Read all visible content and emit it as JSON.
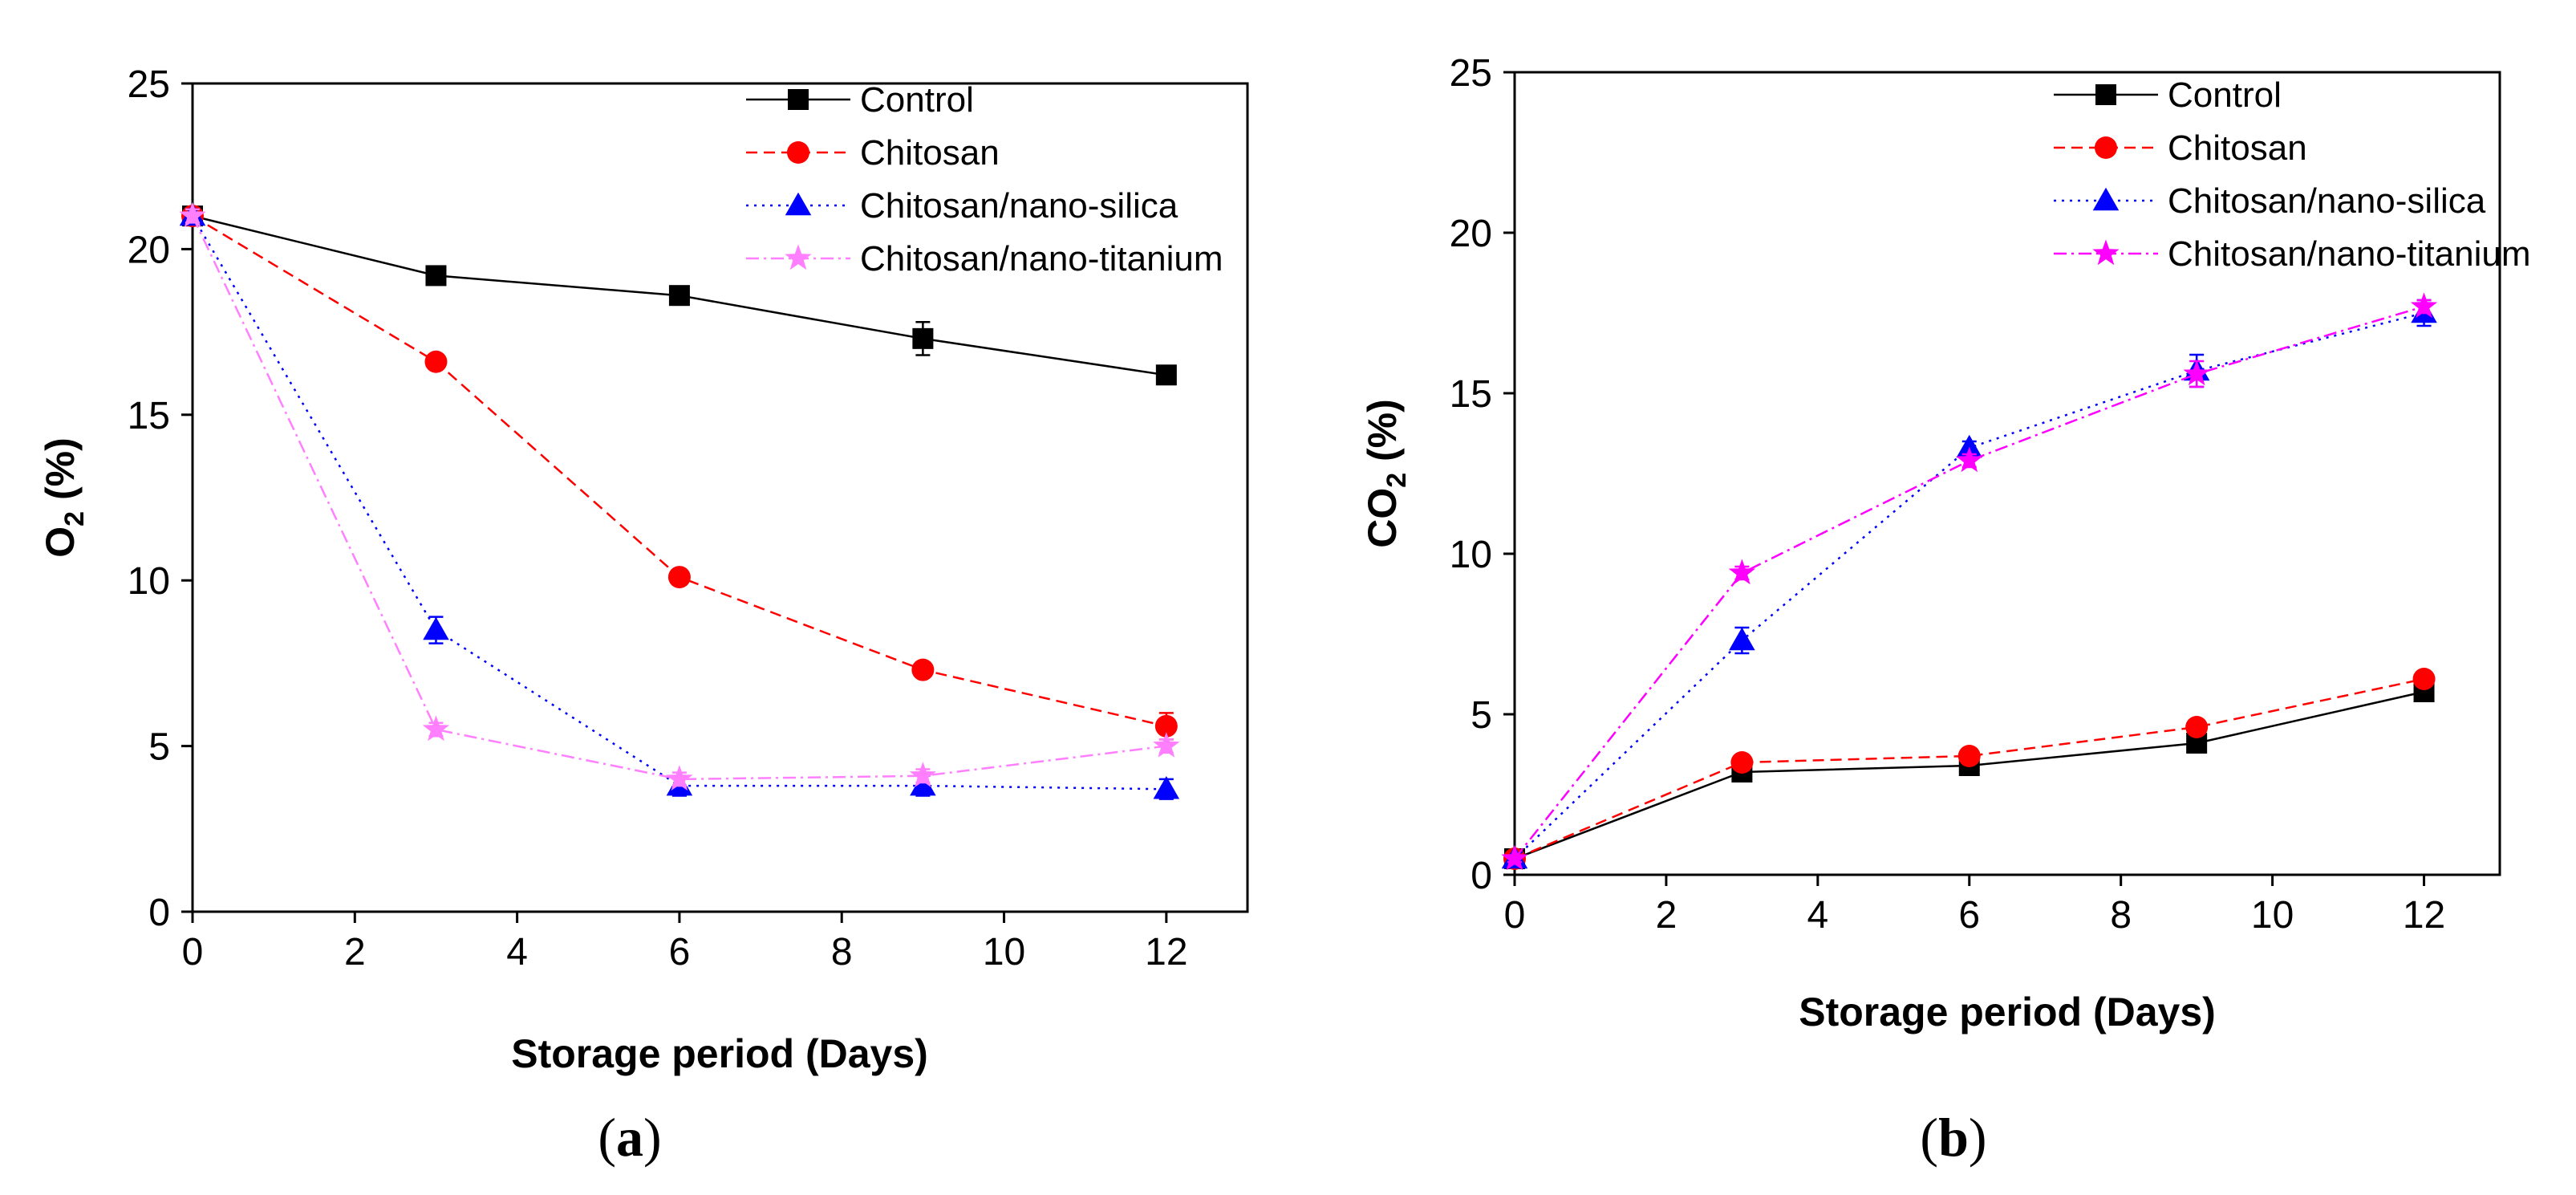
{
  "chart_data": [
    {
      "type": "line",
      "panel_label": "(a)",
      "caption": {
        "open": "(",
        "letter": "a",
        "close": ")"
      },
      "xlabel": "Storage period (Days)",
      "ylabel": {
        "base": "O",
        "sub": "2",
        "rest": " (%)"
      },
      "xlim": [
        0,
        13
      ],
      "ylim": [
        0,
        25
      ],
      "xticks": [
        0,
        2,
        4,
        6,
        8,
        10,
        12
      ],
      "yticks": [
        0,
        5,
        10,
        15,
        20,
        25
      ],
      "legend_position": "top-right",
      "series": [
        {
          "name": "Control",
          "color": "#000000",
          "marker": "square",
          "dash": "solid",
          "x": [
            0,
            3,
            6,
            9,
            12
          ],
          "y": [
            21.0,
            19.2,
            18.6,
            17.3,
            16.2
          ],
          "err": [
            0.2,
            0.2,
            0.2,
            0.5,
            0.2
          ]
        },
        {
          "name": "Chitosan",
          "color": "#ff0000",
          "marker": "circle",
          "dash": "dashed",
          "x": [
            0,
            3,
            6,
            9,
            12
          ],
          "y": [
            21.0,
            16.6,
            10.1,
            7.3,
            5.6
          ],
          "err": [
            0.2,
            0.2,
            0.2,
            0.2,
            0.4
          ]
        },
        {
          "name": "Chitosan/nano-silica",
          "color": "#0000ff",
          "marker": "triangle",
          "dash": "dotted",
          "x": [
            0,
            3,
            6,
            9,
            12
          ],
          "y": [
            21.0,
            8.5,
            3.8,
            3.8,
            3.7
          ],
          "err": [
            0.2,
            0.4,
            0.3,
            0.3,
            0.3
          ]
        },
        {
          "name": "Chitosan/nano-titanium",
          "color": "#ff7fff",
          "marker": "star",
          "dash": "dashdot",
          "x": [
            0,
            3,
            6,
            9,
            12
          ],
          "y": [
            21.0,
            5.5,
            4.0,
            4.1,
            5.0
          ],
          "err": [
            0.2,
            0.2,
            0.2,
            0.2,
            0.2
          ]
        }
      ]
    },
    {
      "type": "line",
      "panel_label": "(b)",
      "caption": {
        "open": "(",
        "letter": "b",
        "close": ")"
      },
      "xlabel": "Storage period (Days)",
      "ylabel": {
        "base": "CO",
        "sub": "2",
        "rest": " (%)"
      },
      "xlim": [
        0,
        13
      ],
      "ylim": [
        0,
        25
      ],
      "xticks": [
        0,
        2,
        4,
        6,
        8,
        10,
        12
      ],
      "yticks": [
        0,
        5,
        10,
        15,
        20,
        25
      ],
      "legend_position": "top-right",
      "series": [
        {
          "name": "Control",
          "color": "#000000",
          "marker": "square",
          "dash": "solid",
          "x": [
            0,
            3,
            6,
            9,
            12
          ],
          "y": [
            0.5,
            3.2,
            3.4,
            4.1,
            5.7
          ],
          "err": [
            0.1,
            0.1,
            0.1,
            0.1,
            0.1
          ]
        },
        {
          "name": "Chitosan",
          "color": "#ff0000",
          "marker": "circle",
          "dash": "dashed",
          "x": [
            0,
            3,
            6,
            9,
            12
          ],
          "y": [
            0.5,
            3.5,
            3.7,
            4.6,
            6.1
          ],
          "err": [
            0.1,
            0.1,
            0.1,
            0.1,
            0.1
          ]
        },
        {
          "name": "Chitosan/nano-silica",
          "color": "#0000ff",
          "marker": "triangle",
          "dash": "dotted",
          "x": [
            0,
            3,
            6,
            9,
            12
          ],
          "y": [
            0.5,
            7.3,
            13.3,
            15.7,
            17.5
          ],
          "err": [
            0.1,
            0.4,
            0.2,
            0.5,
            0.4
          ]
        },
        {
          "name": "Chitosan/nano-titanium",
          "color": "#ff00ff",
          "marker": "star",
          "dash": "dashdot",
          "x": [
            0,
            3,
            6,
            9,
            12
          ],
          "y": [
            0.5,
            9.4,
            12.9,
            15.6,
            17.7
          ],
          "err": [
            0.1,
            0.2,
            0.2,
            0.4,
            0.2
          ]
        }
      ]
    }
  ]
}
